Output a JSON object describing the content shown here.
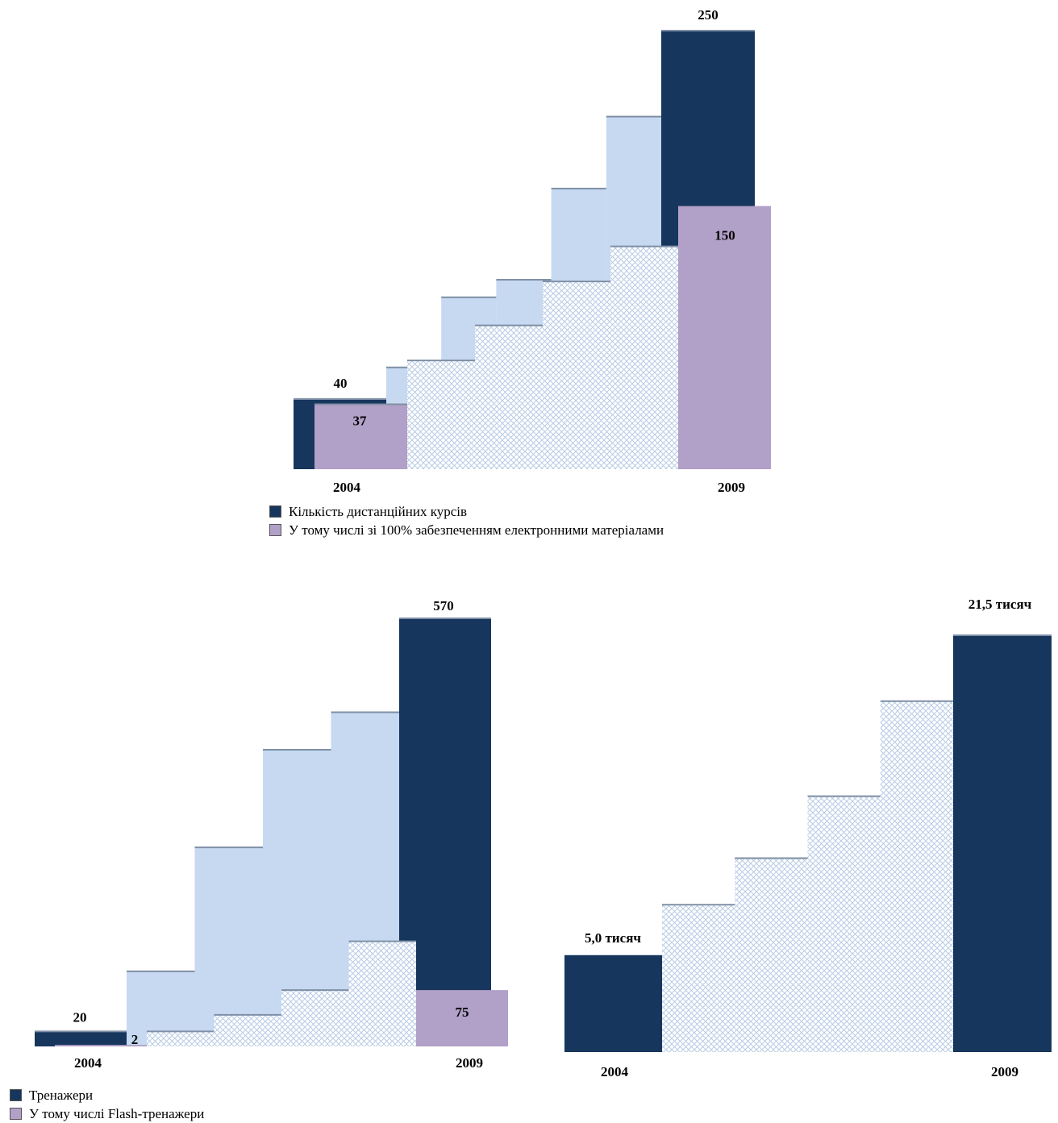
{
  "colors": {
    "dark": "#17365d",
    "purple": "#b1a0c7",
    "light": "#c6d9f1",
    "hatch": "#b8cce4"
  },
  "chart_data": [
    {
      "type": "bar",
      "categories": [
        "2004",
        "2009"
      ],
      "series": [
        {
          "name": "Кількість дистанційних курсів",
          "values": [
            40,
            250
          ]
        },
        {
          "name": "У тому числі зі 100% забезпеченням електронними матеріалами",
          "values": [
            37,
            150
          ]
        }
      ],
      "value_labels": [
        "40",
        "250",
        "37",
        "150"
      ],
      "intermediate_steps_series1": [
        58,
        98,
        108,
        160,
        201
      ],
      "intermediate_steps_series2": [
        62,
        82,
        107,
        127
      ],
      "ylim": [
        0,
        250
      ]
    },
    {
      "type": "bar",
      "categories": [
        "2004",
        "2009"
      ],
      "series": [
        {
          "name": "Тренажери",
          "values": [
            20,
            570
          ]
        },
        {
          "name": "У тому числі Flash-тренажери",
          "values": [
            2,
            75
          ]
        }
      ],
      "value_labels": [
        "20",
        "570",
        "2",
        "75"
      ],
      "intermediate_steps_series1": [
        100,
        265,
        395,
        445
      ],
      "intermediate_steps_series2": [
        20,
        42,
        75,
        140
      ],
      "ylim": [
        0,
        570
      ]
    },
    {
      "type": "bar",
      "categories": [
        "2004",
        "2009"
      ],
      "series": [
        {
          "values": [
            5.0,
            21.5
          ]
        }
      ],
      "value_labels": [
        "5,0 тисяч",
        "21,5 тисяч"
      ],
      "intermediate_steps": [
        7.6,
        10.0,
        13.2,
        18.1
      ],
      "ylim": [
        0,
        21.5
      ]
    }
  ]
}
